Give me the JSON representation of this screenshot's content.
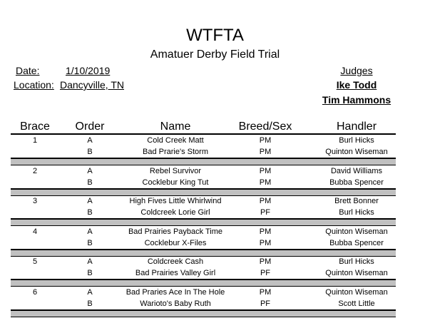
{
  "header": {
    "org": "WTFTA",
    "event": "Amatuer Derby Field Trial",
    "date_label": "Date:",
    "date": "1/10/2019",
    "location_label": "Location:",
    "location": "Dancyville, TN",
    "judges_label": "Judges",
    "judges": [
      "Ike Todd",
      "Tim Hammons"
    ]
  },
  "columns": [
    "Brace",
    "Order",
    "Name",
    "Breed/Sex",
    "Handler"
  ],
  "braces": [
    {
      "brace": "1",
      "entries": [
        {
          "order": "A",
          "name": "Cold Creek Matt",
          "breed_sex": "PM",
          "handler": "Burl Hicks"
        },
        {
          "order": "B",
          "name": "Bad Prarie's Storm",
          "breed_sex": "PM",
          "handler": "Quinton Wiseman"
        }
      ]
    },
    {
      "brace": "2",
      "entries": [
        {
          "order": "A",
          "name": "Rebel Survivor",
          "breed_sex": "PM",
          "handler": "David Williams"
        },
        {
          "order": "B",
          "name": "Cocklebur King Tut",
          "breed_sex": "PM",
          "handler": "Bubba Spencer"
        }
      ]
    },
    {
      "brace": "3",
      "entries": [
        {
          "order": "A",
          "name": "High Fives Little Whirlwind",
          "breed_sex": "PM",
          "handler": "Brett Bonner"
        },
        {
          "order": "B",
          "name": "Coldcreek Lorie Girl",
          "breed_sex": "PF",
          "handler": "Burl Hicks"
        }
      ]
    },
    {
      "brace": "4",
      "entries": [
        {
          "order": "A",
          "name": "Bad Prairies Payback Time",
          "breed_sex": "PM",
          "handler": "Quinton Wiseman"
        },
        {
          "order": "B",
          "name": "Cocklebur X-Files",
          "breed_sex": "PM",
          "handler": "Bubba Spencer"
        }
      ]
    },
    {
      "brace": "5",
      "entries": [
        {
          "order": "A",
          "name": "Coldcreek Cash",
          "breed_sex": "PM",
          "handler": "Burl Hicks"
        },
        {
          "order": "B",
          "name": "Bad Prairies Valley Girl",
          "breed_sex": "PF",
          "handler": "Quinton Wiseman"
        }
      ]
    },
    {
      "brace": "6",
      "entries": [
        {
          "order": "A",
          "name": "Bad Praries Ace In The Hole",
          "breed_sex": "PM",
          "handler": "Quinton Wiseman"
        },
        {
          "order": "B",
          "name": "Warioto's Baby Ruth",
          "breed_sex": "PF",
          "handler": "Scott Little"
        }
      ]
    }
  ]
}
